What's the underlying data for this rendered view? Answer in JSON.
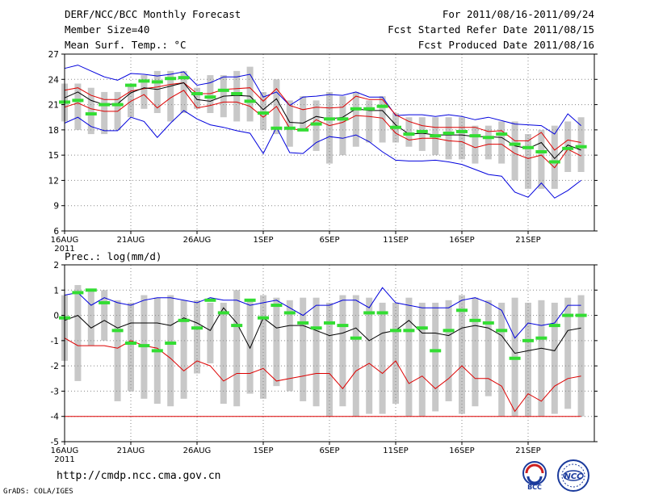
{
  "header": {
    "title": "DERF/NCC/BCC Monthly Forecast",
    "member_size": "Member Size=40",
    "variable": "Mean Surf. Temp.: °C",
    "forecast_period": "For 2011/08/16-2011/09/24",
    "start_refer_date": "Fcst Started Refer Date 2011/08/15",
    "produced_date": "Fcst Produced Date 2011/08/16"
  },
  "footer": {
    "url": "http://cmdp.ncc.cma.gov.cn",
    "credit": "GrADS: COLA/IGES",
    "logo_bcc_text": "BCC",
    "logo_ncc_text": "NCC"
  },
  "colors": {
    "box": "#c8c8c8",
    "median": "#33dd33",
    "mean": "#000000",
    "upper": "#0000dd",
    "lower_red": "#dd0000",
    "grid": "#888888"
  },
  "chart_data": [
    {
      "type": "line",
      "title": "Mean Surf. Temp.: °C",
      "ylim": [
        6,
        27
      ],
      "yticks": [
        6,
        9,
        12,
        15,
        18,
        21,
        24,
        27
      ],
      "xlim": [
        1,
        41
      ],
      "xticks": [
        1,
        6,
        11,
        16,
        21,
        26,
        31,
        36
      ],
      "xtick_labels": [
        "16AUG",
        "21AUG",
        "26AUG",
        "1SEP",
        "6SEP",
        "11SEP",
        "16SEP",
        "21SEP"
      ],
      "xtick_sublabel": "2011",
      "grid": true,
      "x": [
        1,
        2,
        3,
        4,
        5,
        6,
        7,
        8,
        9,
        10,
        11,
        12,
        13,
        14,
        15,
        16,
        17,
        18,
        19,
        20,
        21,
        22,
        23,
        24,
        25,
        26,
        27,
        28,
        29,
        30,
        31,
        32,
        33,
        34,
        35,
        36,
        37,
        38,
        39,
        40
      ],
      "box_low": [
        19.0,
        18.0,
        17.5,
        17.5,
        18.0,
        19.5,
        20.5,
        20.0,
        19.0,
        20.0,
        20.5,
        20.0,
        19.5,
        19.0,
        19.0,
        18.0,
        17.5,
        16.0,
        18.0,
        15.5,
        14.0,
        15.0,
        16.0,
        16.5,
        16.5,
        16.5,
        16.0,
        15.5,
        15.0,
        14.5,
        14.5,
        14.0,
        14.5,
        14.0,
        12.0,
        11.0,
        11.0,
        11.0,
        13.0,
        13.0
      ],
      "box_high": [
        23.5,
        23.5,
        23.0,
        22.5,
        22.5,
        23.5,
        24.5,
        25.0,
        25.0,
        25.0,
        23.0,
        24.5,
        24.5,
        25.0,
        25.5,
        22.5,
        24.0,
        21.5,
        22.0,
        21.5,
        22.5,
        22.0,
        22.5,
        21.5,
        22.0,
        20.0,
        19.5,
        19.5,
        19.5,
        19.5,
        19.5,
        18.5,
        18.5,
        19.0,
        19.0,
        17.5,
        18.0,
        18.5,
        19.0,
        19.5
      ],
      "series": [
        {
          "name": "ensemble_max",
          "color": "#0000dd",
          "values": [
            25.3,
            25.7,
            25.0,
            24.3,
            23.9,
            24.7,
            24.6,
            24.4,
            24.6,
            24.9,
            23.3,
            23.6,
            24.3,
            24.3,
            24.6,
            21.9,
            22.5,
            20.9,
            21.9,
            22.0,
            22.2,
            22.1,
            22.5,
            21.9,
            21.9,
            19.7,
            19.8,
            19.8,
            19.6,
            19.8,
            19.6,
            19.2,
            19.5,
            19.1,
            18.7,
            18.6,
            18.5,
            17.5,
            19.9,
            18.5
          ]
        },
        {
          "name": "upper_quantile",
          "color": "#dd0000",
          "values": [
            22.7,
            23.0,
            22.1,
            21.6,
            21.6,
            22.6,
            22.9,
            23.1,
            23.4,
            23.6,
            22.3,
            22.3,
            22.8,
            22.9,
            23.0,
            21.4,
            22.9,
            20.9,
            20.4,
            20.7,
            20.6,
            20.7,
            22.0,
            21.6,
            21.6,
            19.8,
            19.0,
            18.5,
            18.3,
            18.3,
            18.3,
            18.3,
            17.8,
            17.9,
            16.7,
            16.7,
            17.7,
            15.6,
            16.8,
            16.5
          ]
        },
        {
          "name": "ensemble_mean",
          "color": "#000000",
          "values": [
            21.8,
            22.5,
            21.5,
            21.0,
            21.1,
            22.4,
            23.0,
            22.8,
            23.2,
            23.6,
            21.6,
            21.4,
            22.0,
            22.1,
            22.0,
            20.4,
            21.7,
            18.9,
            18.8,
            19.6,
            19.3,
            19.5,
            20.5,
            20.3,
            20.3,
            18.6,
            17.5,
            17.6,
            17.4,
            17.4,
            17.4,
            17.2,
            17.2,
            17.1,
            16.1,
            15.8,
            16.5,
            14.6,
            16.2,
            15.6
          ]
        },
        {
          "name": "lower_quantile",
          "color": "#dd0000",
          "values": [
            20.7,
            21.2,
            20.5,
            20.2,
            20.2,
            21.4,
            22.2,
            20.6,
            21.8,
            22.7,
            20.6,
            20.9,
            21.3,
            21.3,
            20.8,
            19.5,
            20.8,
            18.2,
            17.9,
            19.2,
            18.5,
            18.9,
            19.7,
            19.6,
            19.4,
            17.6,
            16.8,
            17.0,
            17.0,
            16.7,
            16.6,
            15.9,
            16.3,
            16.3,
            15.2,
            14.6,
            15.0,
            13.5,
            15.7,
            14.9
          ]
        },
        {
          "name": "ensemble_min",
          "color": "#0000dd",
          "values": [
            18.8,
            19.5,
            18.4,
            17.9,
            17.9,
            19.5,
            19.0,
            17.1,
            18.8,
            20.3,
            19.3,
            18.6,
            18.3,
            17.9,
            17.6,
            15.2,
            18.3,
            15.3,
            15.2,
            16.5,
            17.2,
            17.0,
            17.4,
            16.6,
            15.4,
            14.4,
            14.3,
            14.3,
            14.4,
            14.2,
            13.9,
            13.3,
            12.7,
            12.5,
            10.6,
            10.0,
            11.7,
            9.9,
            10.8,
            12.0
          ]
        },
        {
          "name": "median",
          "color": "#33dd33",
          "values": [
            21.3,
            21.5,
            19.9,
            21.0,
            21.0,
            23.3,
            23.8,
            23.7,
            24.1,
            24.2,
            22.3,
            21.9,
            22.7,
            22.3,
            21.4,
            20.0,
            18.2,
            18.2,
            18.0,
            18.7,
            19.3,
            19.3,
            20.5,
            20.5,
            20.8,
            18.3,
            17.5,
            17.8,
            17.3,
            17.6,
            17.8,
            17.3,
            17.1,
            17.5,
            16.3,
            15.9,
            15.4,
            14.2,
            15.8,
            16.0
          ]
        }
      ]
    },
    {
      "type": "line",
      "title": "Prec.: log(mm/d)",
      "ylim": [
        -5,
        2
      ],
      "yticks": [
        -5,
        -4,
        -3,
        -2,
        -1,
        0,
        1,
        2
      ],
      "xlim": [
        1,
        41
      ],
      "xticks": [
        1,
        6,
        11,
        16,
        21,
        26,
        31,
        36
      ],
      "xtick_labels": [
        "16AUG",
        "21AUG",
        "26AUG",
        "1SEP",
        "6SEP",
        "11SEP",
        "16SEP",
        "21SEP"
      ],
      "xtick_sublabel": "2011",
      "grid": true,
      "x": [
        1,
        2,
        3,
        4,
        5,
        6,
        7,
        8,
        9,
        10,
        11,
        12,
        13,
        14,
        15,
        16,
        17,
        18,
        19,
        20,
        21,
        22,
        23,
        24,
        25,
        26,
        27,
        28,
        29,
        30,
        31,
        32,
        33,
        34,
        35,
        36,
        37,
        38,
        39,
        40
      ],
      "box_low": [
        -1.8,
        -2.6,
        -1.2,
        -1.0,
        -3.4,
        -3.0,
        -3.3,
        -3.5,
        -3.6,
        -3.3,
        -2.3,
        -1.9,
        -3.5,
        -3.6,
        -3.1,
        -3.3,
        -2.8,
        -3.0,
        -3.4,
        -3.6,
        -4.0,
        -3.6,
        -4.0,
        -3.9,
        -3.9,
        -3.5,
        -4.0,
        -4.0,
        -3.8,
        -3.4,
        -3.9,
        -3.6,
        -3.2,
        -4.0,
        -4.0,
        -4.0,
        -4.0,
        -3.9,
        -3.7,
        -4.0
      ],
      "box_high": [
        0.8,
        1.2,
        1.0,
        1.0,
        0.6,
        0.5,
        0.8,
        0.7,
        0.8,
        0.6,
        0.6,
        0.5,
        0.5,
        1.0,
        0.6,
        0.8,
        0.7,
        0.6,
        0.7,
        0.7,
        0.5,
        0.8,
        0.8,
        0.7,
        0.5,
        0.5,
        0.7,
        0.5,
        0.5,
        0.6,
        0.8,
        0.7,
        0.6,
        0.5,
        0.7,
        0.5,
        0.6,
        0.5,
        0.7,
        0.8
      ],
      "box_floor": -4,
      "series": [
        {
          "name": "ensemble_max",
          "color": "#0000dd",
          "values": [
            0.8,
            0.9,
            0.4,
            0.7,
            0.5,
            0.4,
            0.6,
            0.7,
            0.7,
            0.6,
            0.5,
            0.7,
            0.6,
            0.6,
            0.4,
            0.5,
            0.6,
            0.3,
            0.0,
            0.4,
            0.4,
            0.6,
            0.6,
            0.3,
            1.1,
            0.5,
            0.4,
            0.3,
            0.3,
            0.3,
            0.6,
            0.7,
            0.5,
            0.2,
            -0.9,
            -0.3,
            -0.4,
            -0.3,
            0.4,
            0.4
          ]
        },
        {
          "name": "ensemble_mean",
          "color": "#000000",
          "values": [
            -0.2,
            0.0,
            -0.5,
            -0.2,
            -0.5,
            -0.3,
            -0.3,
            -0.3,
            -0.4,
            -0.1,
            -0.3,
            -0.6,
            0.3,
            -0.3,
            -1.3,
            -0.1,
            -0.5,
            -0.4,
            -0.4,
            -0.6,
            -0.8,
            -0.7,
            -0.5,
            -1.0,
            -0.7,
            -0.6,
            -0.2,
            -0.7,
            -0.7,
            -0.8,
            -0.5,
            -0.4,
            -0.5,
            -0.8,
            -1.5,
            -1.4,
            -1.3,
            -1.4,
            -0.6,
            -0.5
          ]
        },
        {
          "name": "lower_quantile",
          "color": "#dd0000",
          "values": [
            -0.9,
            -1.2,
            -1.2,
            -1.2,
            -1.3,
            -1.0,
            -1.2,
            -1.3,
            -1.7,
            -2.2,
            -1.8,
            -2.0,
            -2.6,
            -2.3,
            -2.3,
            -2.1,
            -2.6,
            -2.5,
            -2.4,
            -2.3,
            -2.3,
            -2.9,
            -2.2,
            -1.9,
            -2.3,
            -1.8,
            -2.7,
            -2.4,
            -2.9,
            -2.5,
            -2.0,
            -2.5,
            -2.5,
            -2.8,
            -3.8,
            -3.1,
            -3.4,
            -2.8,
            -2.5,
            -2.4
          ]
        },
        {
          "name": "ensemble_min",
          "color": "#dd0000",
          "values": [
            -4.0,
            -4.0,
            -4.0,
            -4.0,
            -4.0,
            -4.0,
            -4.0,
            -4.0,
            -4.0,
            -4.0,
            -4.0,
            -4.0,
            -4.0,
            -4.0,
            -4.0,
            -4.0,
            -4.0,
            -4.0,
            -4.0,
            -4.0,
            -4.0,
            -4.0,
            -4.0,
            -4.0,
            -4.0,
            -4.0,
            -4.0,
            -4.0,
            -4.0,
            -4.0,
            -4.0,
            -4.0,
            -4.0,
            -4.0,
            -4.0,
            -4.0,
            -4.0,
            -4.0,
            -4.0,
            -4.0
          ]
        },
        {
          "name": "median",
          "color": "#33dd33",
          "values": [
            -0.1,
            0.9,
            1.0,
            0.5,
            -0.6,
            -1.1,
            -1.2,
            -1.4,
            -1.1,
            -0.2,
            -0.5,
            0.6,
            0.1,
            -0.4,
            0.6,
            -0.1,
            0.4,
            0.1,
            -0.3,
            -0.5,
            -0.3,
            -0.4,
            -0.9,
            0.1,
            0.1,
            -0.6,
            -0.6,
            -0.5,
            -1.4,
            -0.6,
            0.2,
            -0.2,
            -0.3,
            -0.6,
            -1.7,
            -1.0,
            -0.9,
            -0.4,
            0.0,
            0.0
          ]
        }
      ]
    }
  ]
}
